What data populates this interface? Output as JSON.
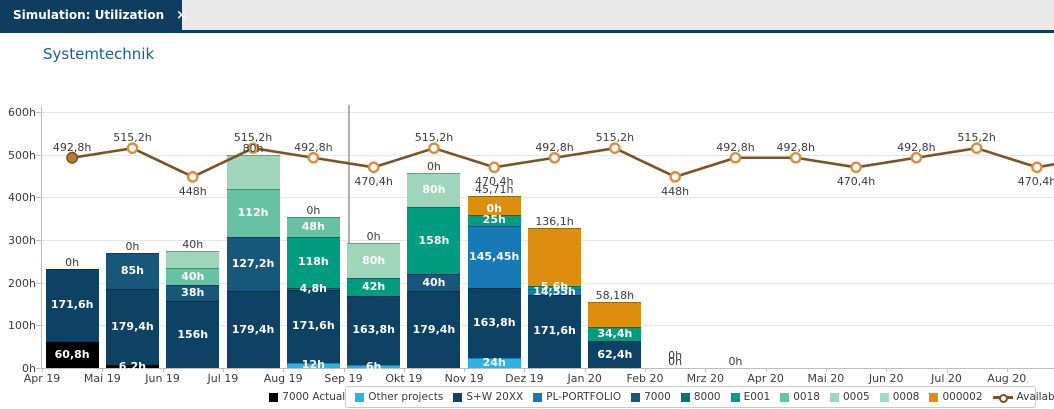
{
  "window": {
    "tab_title": "Simulation: Utilization",
    "close_label": "×"
  },
  "page": {
    "title": "Systemtechnik"
  },
  "colors": {
    "topbar_bg": "#E9E9E9",
    "tab_bg": "#0E3D5F",
    "title_text": "#1D5E8A",
    "capacity_line": "#7A5228",
    "capacity_marker_ring": "#D98B3F",
    "capacity_marker_first_fill": "#BE7B2D",
    "series": {
      "7000 Actual": "#000000",
      "Other projects": "#2BB3E8",
      "S+W 20XX": "#0D4265",
      "PL-PORTFOLIO": "#1779B5",
      "7000": "#175779",
      "8000": "#00746E",
      "E001": "#009C82",
      "0018": "#66C2A3",
      "0005": "#9ED5BB",
      "0008": "#A5D8BE",
      "000002": "#DE8E0E"
    }
  },
  "chart_data": {
    "type": "bar",
    "subtype": "stacked-bars-with-capacity-line",
    "title": "Systemtechnik",
    "unit": "h",
    "grid": true,
    "y_axis": {
      "min": 0,
      "max": 600,
      "step": 100,
      "ticks": [
        "0h",
        "100h",
        "200h",
        "300h",
        "400h",
        "500h",
        "600h"
      ]
    },
    "categories": [
      "Apr 19",
      "Mai 19",
      "Jun 19",
      "Jul 19",
      "Aug 19",
      "Sep 19",
      "Okt 19",
      "Nov 19",
      "Dez 19",
      "Jan 20",
      "Feb 20",
      "Mrz 20",
      "Apr 20",
      "Mai 20",
      "Jun 20",
      "Jul 20",
      "Aug 20"
    ],
    "today_marker": {
      "month": "Sep 19"
    },
    "bars": [
      {
        "month": "Apr 19",
        "segments": [
          {
            "series": "7000 Actual",
            "value": 60.8,
            "label": "60,8h"
          },
          {
            "series": "S+W 20XX",
            "value": 171.6,
            "label": "171,6h"
          }
        ],
        "labels_above": [
          "0h"
        ]
      },
      {
        "month": "Mai 19",
        "segments": [
          {
            "series": "7000 Actual",
            "value": 6.2,
            "label": "6,2h"
          },
          {
            "series": "S+W 20XX",
            "value": 179.4,
            "label": "179,4h"
          },
          {
            "series": "7000",
            "value": 85,
            "label": "85h"
          }
        ],
        "labels_above": [
          "0h"
        ]
      },
      {
        "month": "Jun 19",
        "segments": [
          {
            "series": "S+W 20XX",
            "value": 156,
            "label": "156h"
          },
          {
            "series": "7000",
            "value": 38,
            "label": "38h"
          },
          {
            "series": "0018",
            "value": 40,
            "label": "40h"
          },
          {
            "series": "0005",
            "value": 40,
            "label": null
          }
        ],
        "labels_above": [
          "40h"
        ]
      },
      {
        "month": "Jul 19",
        "segments": [
          {
            "series": "S+W 20XX",
            "value": 179.4,
            "label": "179,4h"
          },
          {
            "series": "7000",
            "value": 127.2,
            "label": "127,2h"
          },
          {
            "series": "0018",
            "value": 112,
            "label": "112h"
          },
          {
            "series": "0005",
            "value": 80,
            "label": null
          }
        ],
        "labels_above": [
          "80h"
        ]
      },
      {
        "month": "Aug 19",
        "segments": [
          {
            "series": "Other projects",
            "value": 12,
            "label": "12h"
          },
          {
            "series": "S+W 20XX",
            "value": 171.6,
            "label": "171,6h"
          },
          {
            "series": "8000",
            "value": 4.8,
            "label": "4,8h"
          },
          {
            "series": "E001",
            "value": 118,
            "label": "118h"
          },
          {
            "series": "0018",
            "value": 48,
            "label": "48h"
          }
        ],
        "labels_above": [
          "0h"
        ]
      },
      {
        "month": "Sep 19",
        "segments": [
          {
            "series": "Other projects",
            "value": 6,
            "label": "6h"
          },
          {
            "series": "S+W 20XX",
            "value": 163.8,
            "label": "163,8h"
          },
          {
            "series": "E001",
            "value": 42,
            "label": "42h"
          },
          {
            "series": "0005",
            "value": 80,
            "label": "80h"
          }
        ],
        "labels_above": [
          "0h"
        ]
      },
      {
        "month": "Okt 19",
        "segments": [
          {
            "series": "S+W 20XX",
            "value": 179.4,
            "label": "179,4h"
          },
          {
            "series": "7000",
            "value": 40,
            "label": "40h"
          },
          {
            "series": "E001",
            "value": 158,
            "label": "158h"
          },
          {
            "series": "0005",
            "value": 80,
            "label": "80h"
          }
        ],
        "labels_above": [
          "0h"
        ]
      },
      {
        "month": "Nov 19",
        "segments": [
          {
            "series": "Other projects",
            "value": 24,
            "label": "24h"
          },
          {
            "series": "S+W 20XX",
            "value": 163.8,
            "label": "163,8h"
          },
          {
            "series": "PL-PORTFOLIO",
            "value": 145.45,
            "label": "145,45h"
          },
          {
            "series": "E001",
            "value": 25,
            "label": "25h"
          },
          {
            "series": "0008",
            "value": 0,
            "label": "0h"
          },
          {
            "series": "000002",
            "value": 45.71,
            "label": null
          }
        ],
        "labels_above": [
          "45,71h"
        ]
      },
      {
        "month": "Dez 19",
        "segments": [
          {
            "series": "S+W 20XX",
            "value": 171.6,
            "label": "171,6h"
          },
          {
            "series": "PL-PORTFOLIO",
            "value": 14.55,
            "label": "14,55h"
          },
          {
            "series": "E001",
            "value": 5.6,
            "label": "5,6h"
          },
          {
            "series": "000002",
            "value": 136.1,
            "label": null
          }
        ],
        "labels_above": [
          "136,1h"
        ]
      },
      {
        "month": "Jan 20",
        "segments": [
          {
            "series": "S+W 20XX",
            "value": 62.4,
            "label": "62,4h"
          },
          {
            "series": "E001",
            "value": 34.4,
            "label": "34,4h"
          },
          {
            "series": "000002",
            "value": 58.18,
            "label": null
          }
        ],
        "labels_above": [
          "58,18h"
        ]
      },
      {
        "month": "Feb 20",
        "segments": [],
        "labels_above": [
          "0h",
          "0h"
        ]
      },
      {
        "month": "Mrz 20",
        "segments": [],
        "labels_above": [
          "0h"
        ]
      },
      {
        "month": "Apr 20",
        "segments": [],
        "labels_above": []
      },
      {
        "month": "Mai 20",
        "segments": [],
        "labels_above": []
      },
      {
        "month": "Jun 20",
        "segments": [],
        "labels_above": []
      },
      {
        "month": "Jul 20",
        "segments": [],
        "labels_above": []
      },
      {
        "month": "Aug 20",
        "segments": [],
        "labels_above": []
      }
    ],
    "line": {
      "name": "Available capacity",
      "values": [
        492.8,
        515.2,
        448,
        515.2,
        492.8,
        470.4,
        515.2,
        470.4,
        492.8,
        515.2,
        448,
        492.8,
        492.8,
        470.4,
        492.8,
        515.2,
        470.4
      ],
      "labels": [
        "492,8h",
        "515,2h",
        "448h",
        "515,2h",
        "492,8h",
        "470,4h",
        "515,2h",
        "470,4h",
        "492,8h",
        "515,2h",
        "448h",
        "492,8h",
        "492,8h",
        "470,4h",
        "492,8h",
        "515,2h",
        "470,4h"
      ],
      "label_positions": [
        "above",
        "above",
        "below",
        "above",
        "above",
        "below",
        "above",
        "below",
        "above",
        "above",
        "below",
        "above",
        "above",
        "below",
        "above",
        "above",
        "below"
      ]
    }
  },
  "legend": {
    "items": [
      {
        "label": "7000 Actual",
        "type": "swatch",
        "series": "7000 Actual"
      },
      {
        "label": "Other projects",
        "type": "swatch",
        "series": "Other projects"
      },
      {
        "label": "S+W 20XX",
        "type": "swatch",
        "series": "S+W 20XX"
      },
      {
        "label": "PL-PORTFOLIO",
        "type": "swatch",
        "series": "PL-PORTFOLIO"
      },
      {
        "label": "7000",
        "type": "swatch",
        "series": "7000"
      },
      {
        "label": "8000",
        "type": "swatch",
        "series": "8000"
      },
      {
        "label": "E001",
        "type": "swatch",
        "series": "E001"
      },
      {
        "label": "0018",
        "type": "swatch",
        "series": "0018"
      },
      {
        "label": "0005",
        "type": "swatch",
        "series": "0005"
      },
      {
        "label": "0008",
        "type": "swatch",
        "series": "0008"
      },
      {
        "label": "000002",
        "type": "swatch",
        "series": "000002"
      },
      {
        "label": "Available capacity",
        "type": "line"
      }
    ]
  }
}
